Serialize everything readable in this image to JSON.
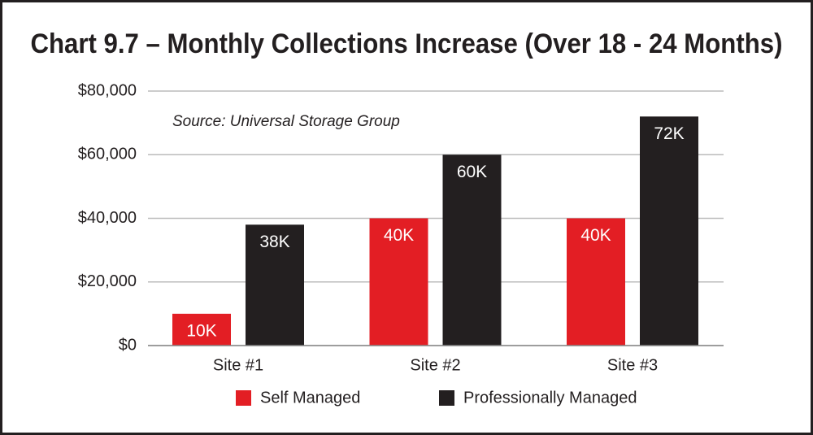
{
  "chart_data": {
    "type": "bar",
    "title": "Chart 9.7 – Monthly Collections Increase (Over 18 - 24 Months)",
    "annotation": "Source: Universal Storage Group",
    "categories": [
      "Site #1",
      "Site #2",
      "Site #3"
    ],
    "series": [
      {
        "name": "Self Managed",
        "color": "#e31e24",
        "values": [
          10000,
          40000,
          40000
        ],
        "value_labels": [
          "10K",
          "40K",
          "40K"
        ]
      },
      {
        "name": "Professionally Managed",
        "color": "#231f20",
        "values": [
          38000,
          60000,
          72000
        ],
        "value_labels": [
          "38K",
          "60K",
          "72K"
        ]
      }
    ],
    "ylim": [
      0,
      80000
    ],
    "yticks": [
      {
        "value": 0,
        "label": "$0"
      },
      {
        "value": 20000,
        "label": "$20,000"
      },
      {
        "value": 40000,
        "label": "$40,000"
      },
      {
        "value": 60000,
        "label": "$60,000"
      },
      {
        "value": 80000,
        "label": "$80,000"
      }
    ],
    "grid": true
  }
}
